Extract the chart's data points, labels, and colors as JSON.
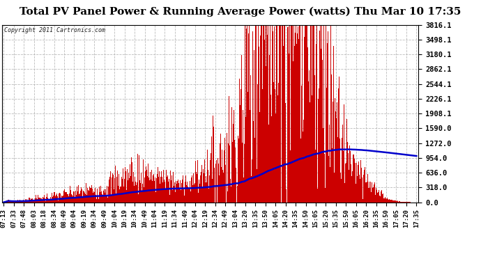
{
  "title": "Total PV Panel Power & Running Average Power (watts) Thu Mar 10 17:35",
  "copyright": "Copyright 2011 Cartronics.com",
  "background_color": "#ffffff",
  "plot_background": "#ffffff",
  "grid_color": "#aaaaaa",
  "bar_color": "#cc0000",
  "line_color": "#0000cc",
  "ytick_labels": [
    "0.0",
    "318.0",
    "636.0",
    "954.0",
    "1272.0",
    "1590.0",
    "1908.1",
    "2226.1",
    "2544.1",
    "2862.1",
    "3180.1",
    "3498.1",
    "3816.1"
  ],
  "ytick_values": [
    0.0,
    318.0,
    636.0,
    954.0,
    1272.0,
    1590.0,
    1908.1,
    2226.1,
    2544.1,
    2862.1,
    3180.1,
    3498.1,
    3816.1
  ],
  "ymax": 3816.1,
  "ymin": 0.0,
  "xtick_labels": [
    "07:13",
    "07:33",
    "07:48",
    "08:03",
    "08:18",
    "08:34",
    "08:49",
    "09:04",
    "09:19",
    "09:34",
    "09:49",
    "10:04",
    "10:19",
    "10:34",
    "10:49",
    "11:04",
    "11:19",
    "11:34",
    "11:49",
    "12:04",
    "12:19",
    "12:34",
    "12:49",
    "13:04",
    "13:20",
    "13:35",
    "13:50",
    "14:05",
    "14:20",
    "14:35",
    "14:50",
    "15:05",
    "15:20",
    "15:35",
    "15:50",
    "16:05",
    "16:20",
    "16:35",
    "16:50",
    "17:05",
    "17:20",
    "17:35"
  ],
  "num_points": 600,
  "title_fontsize": 11
}
